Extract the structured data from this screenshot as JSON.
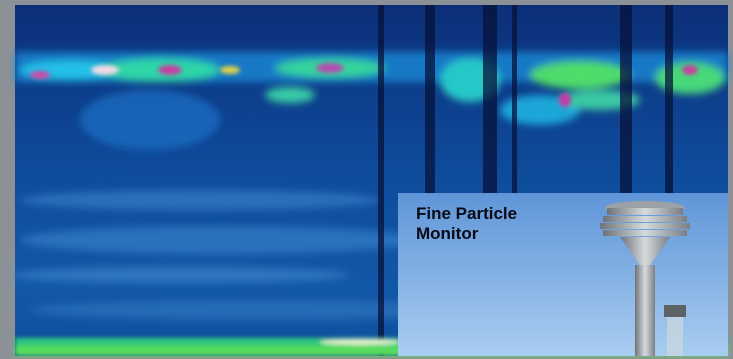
{
  "inset": {
    "label": "Fine Particle Monitor"
  }
}
